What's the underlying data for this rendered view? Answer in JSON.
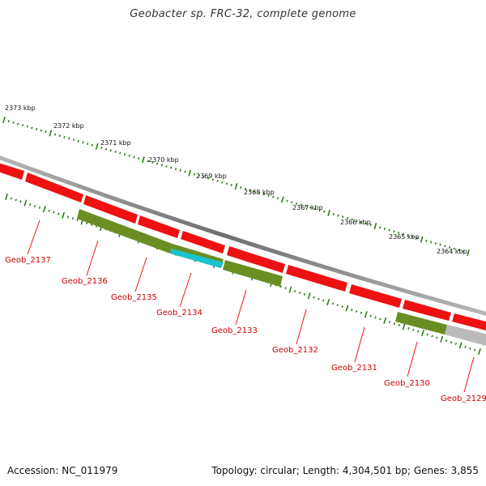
{
  "title": "Geobacter sp. FRC-32, complete genome",
  "footer": {
    "accession": "Accession: NC_011979",
    "topology": "Topology: circular; Length: 4,304,501 bp; Genes: 3,855"
  },
  "colors": {
    "forward_gene": "#ee1111",
    "reverse_gene": "#6b8e23",
    "highlight_gene": "#19c3cf",
    "partial_gene": "#bbbbbb",
    "backbone": "#8c8c8c",
    "ticks": "#2e7d1a",
    "gene_label": "#cc0000"
  },
  "scale_labels": [
    "2373 kbp",
    "2372 kbp",
    "2371 kbp",
    "2370 kbp",
    "2369 kbp",
    "2368 kbp",
    "2367 kbp",
    "2366 kbp",
    "2365 kbp",
    "2364 kbp"
  ],
  "genes": [
    "Geob_2137",
    "Geob_2136",
    "Geob_2135",
    "Geob_2134",
    "Geob_2133",
    "Geob_2132",
    "Geob_2131",
    "Geob_2130",
    "Geob_2129"
  ]
}
